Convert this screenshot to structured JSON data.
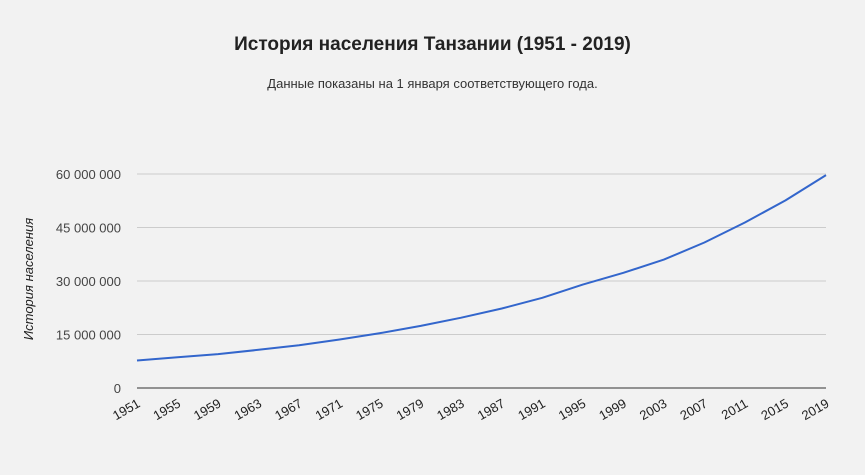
{
  "chart_data": {
    "type": "line",
    "title": "История населения Танзании (1951 - 2019)",
    "subtitle": "Данные показаны на 1 января соответствующего года.",
    "xlabel": "",
    "ylabel": "История населения",
    "xlim": [
      1951,
      2019
    ],
    "ylim": [
      0,
      60000000
    ],
    "y_ticks": [
      0,
      15000000,
      30000000,
      45000000,
      60000000
    ],
    "y_tick_labels": [
      "0",
      "15 000 000",
      "30 000 000",
      "45 000 000",
      "60 000 000"
    ],
    "x_ticks": [
      1951,
      1955,
      1959,
      1963,
      1967,
      1971,
      1975,
      1979,
      1983,
      1987,
      1991,
      1995,
      1999,
      2003,
      2007,
      2011,
      2015,
      2019
    ],
    "grid": true,
    "legend": "none",
    "series": [
      {
        "color": "#3366cc",
        "x": [
          1951,
          1955,
          1959,
          1963,
          1967,
          1971,
          1975,
          1979,
          1983,
          1987,
          1991,
          1995,
          1999,
          2003,
          2007,
          2011,
          2015,
          2019
        ],
        "y": [
          7700000,
          8600000,
          9500000,
          10700000,
          12000000,
          13600000,
          15400000,
          17400000,
          19700000,
          22300000,
          25300000,
          29000000,
          32300000,
          36000000,
          40800000,
          46400000,
          52600000,
          59700000
        ]
      }
    ]
  }
}
